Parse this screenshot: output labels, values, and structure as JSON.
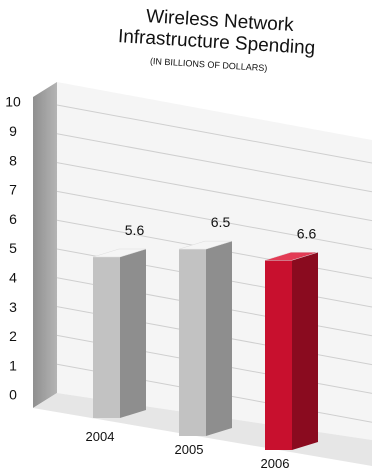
{
  "chart_data": {
    "type": "bar",
    "title": "Wireless Network",
    "title_line2": "Infrastructure Spending",
    "subtitle": "(IN BILLIONS OF DOLLARS)",
    "categories": [
      "2004",
      "2005",
      "2006"
    ],
    "values": [
      5.6,
      6.5,
      6.6
    ],
    "value_labels": [
      "5.6",
      "6.5",
      "6.6"
    ],
    "yticks": [
      "0",
      "1",
      "2",
      "3",
      "4",
      "5",
      "6",
      "7",
      "8",
      "9",
      "10"
    ],
    "ylim": [
      0,
      10
    ],
    "bar_colors": [
      "#bdbdbd",
      "#bdbdbd",
      "#c8102e"
    ],
    "grid": true
  }
}
